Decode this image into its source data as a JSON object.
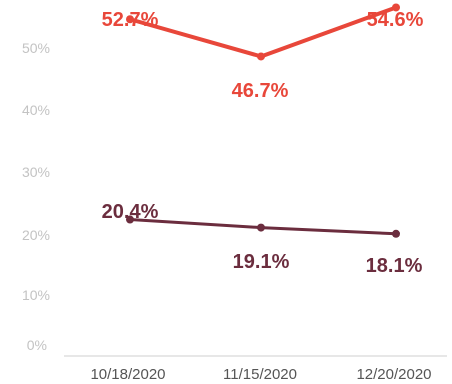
{
  "chart_data": {
    "type": "line",
    "categories": [
      "10/18/2020",
      "11/15/2020",
      "12/20/2020"
    ],
    "series": [
      {
        "values": [
          52.7,
          46.7,
          54.6
        ],
        "labels": [
          "52.7%",
          "46.7%",
          "54.6%"
        ],
        "color": "#e8473a"
      },
      {
        "values": [
          20.4,
          19.1,
          18.1
        ],
        "labels": [
          "20.4%",
          "19.1%",
          "18.1%"
        ],
        "color": "#6b2d3e"
      }
    ],
    "yticks": [
      "0%",
      "10%",
      "20%",
      "30%",
      "40%",
      "50%"
    ],
    "ylim": [
      0,
      57
    ],
    "grid": false,
    "legend": "none"
  }
}
